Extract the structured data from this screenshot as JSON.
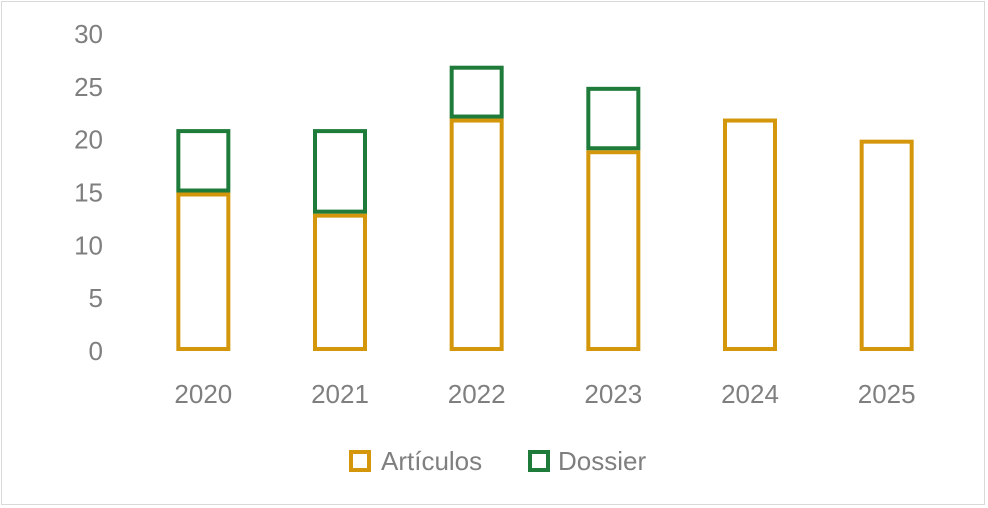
{
  "chart_data": {
    "type": "bar",
    "stacked": true,
    "categories": [
      "2020",
      "2021",
      "2022",
      "2023",
      "2024",
      "2025"
    ],
    "series": [
      {
        "name": "Artículos",
        "color": "#d4960a",
        "values": [
          15,
          13,
          22,
          19,
          22,
          20
        ]
      },
      {
        "name": "Dossier",
        "color": "#1e7b3a",
        "values": [
          6,
          8,
          5,
          6,
          0,
          0
        ]
      }
    ],
    "ylim": [
      0,
      30
    ],
    "yticks": [
      "0",
      "5",
      "10",
      "15",
      "20",
      "25",
      "30"
    ],
    "grid": false,
    "legend": "bottom",
    "title": "",
    "xlabel": "",
    "ylabel": ""
  }
}
